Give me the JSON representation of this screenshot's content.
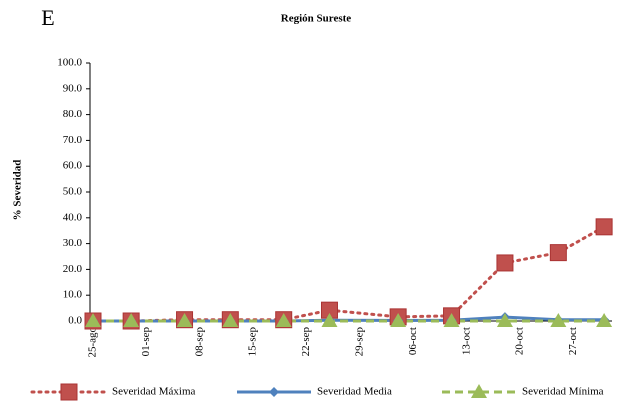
{
  "panel_label": "E",
  "chart_data": {
    "type": "line",
    "title": "Región Sureste",
    "y_label": "% Severidad",
    "xticks": [
      "25-ago",
      "01-sep",
      "08-sep",
      "15-sep",
      "22-sep",
      "29-sep",
      "06-oct",
      "13-oct",
      "20-oct",
      "27-oct"
    ],
    "x": [
      "25-ago",
      "30-ago",
      "06-sep",
      "12-sep",
      "19-sep",
      "25-sep",
      "04-oct",
      "11-oct",
      "18-oct",
      "25-oct",
      "31-oct"
    ],
    "series": [
      {
        "name": "Severidad Máxima",
        "color": "#c0504d",
        "values": [
          0,
          0,
          0.5,
          0.5,
          0.5,
          4.2,
          1.6,
          2,
          22.5,
          26.5,
          36.5
        ]
      },
      {
        "name": "Severidad Media",
        "color": "#4f81bd",
        "values": [
          0,
          0,
          0,
          0,
          0,
          0.3,
          0.2,
          0.3,
          1.5,
          0.5,
          0.5
        ]
      },
      {
        "name": "Severidad Mínima",
        "color": "#9bbb59",
        "values": [
          0,
          0,
          0,
          0,
          0,
          0,
          0,
          0,
          0,
          0,
          0
        ]
      }
    ],
    "ylim": [
      0,
      100
    ],
    "yticks": [
      {
        "value": 0,
        "label": "0.0"
      },
      {
        "value": 10,
        "label": "10.0"
      },
      {
        "value": 20,
        "label": "20.0"
      },
      {
        "value": 30,
        "label": "30.0"
      },
      {
        "value": 40,
        "label": "40.0"
      },
      {
        "value": 50,
        "label": "50.0"
      },
      {
        "value": 60,
        "label": "60.0"
      },
      {
        "value": 70,
        "label": "70.0"
      },
      {
        "value": 80,
        "label": "80.0"
      },
      {
        "value": 90,
        "label": "90.0"
      },
      {
        "value": 100,
        "label": "100.0"
      }
    ]
  }
}
